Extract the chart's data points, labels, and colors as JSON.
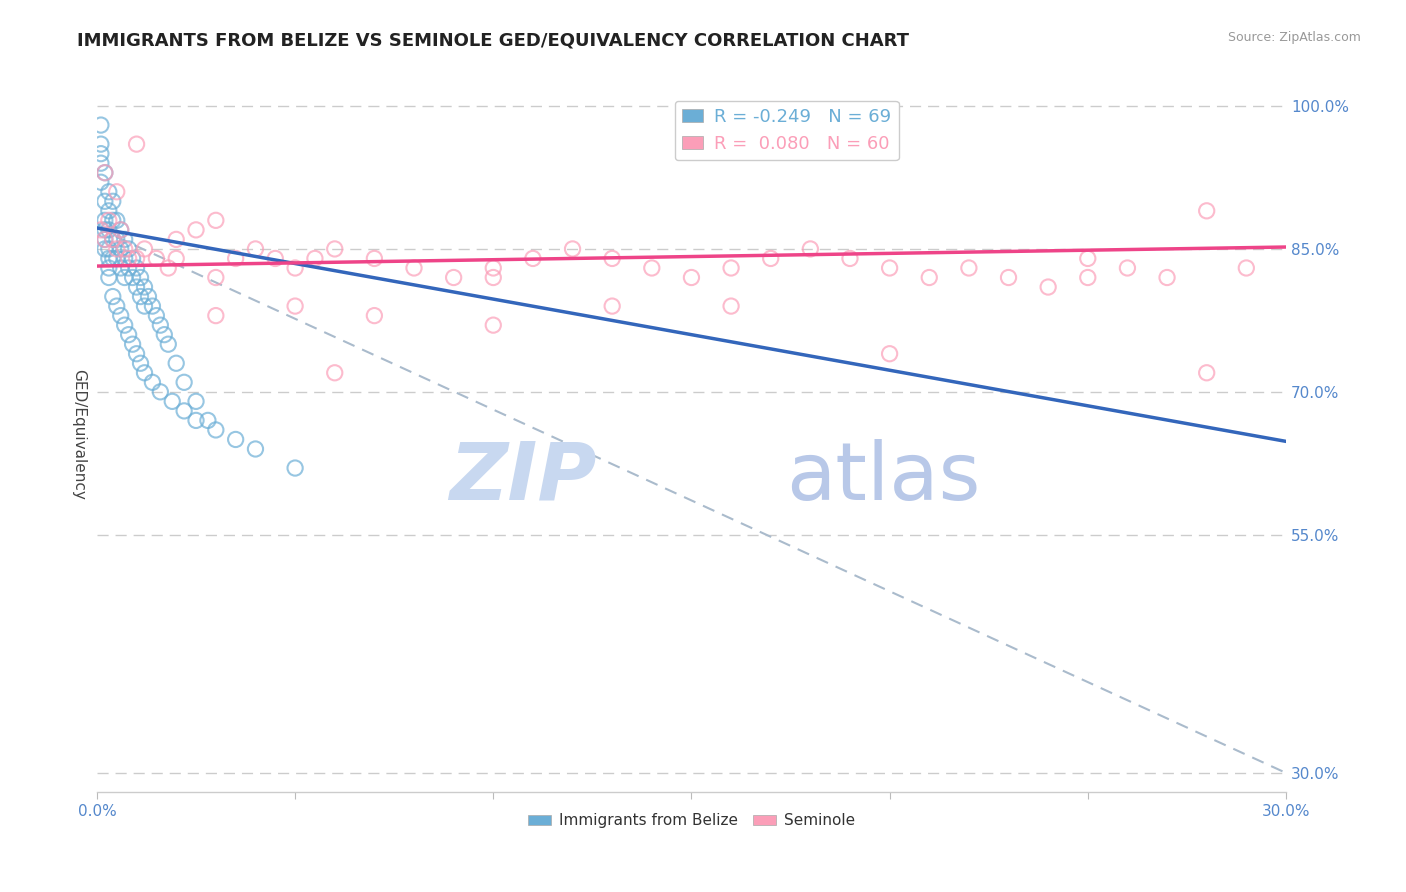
{
  "title": "IMMIGRANTS FROM BELIZE VS SEMINOLE GED/EQUIVALENCY CORRELATION CHART",
  "source": "Source: ZipAtlas.com",
  "ylabel": "GED/Equivalency",
  "xlim": [
    0.0,
    0.3
  ],
  "ylim": [
    0.28,
    1.03
  ],
  "xticks": [
    0.0,
    0.05,
    0.1,
    0.15,
    0.2,
    0.25,
    0.3
  ],
  "xticklabels": [
    "0.0%",
    "",
    "",
    "",
    "",
    "",
    "30.0%"
  ],
  "yticks": [
    0.3,
    0.55,
    0.7,
    0.85,
    1.0
  ],
  "yticklabels": [
    "30.0%",
    "55.0%",
    "70.0%",
    "85.0%",
    "100.0%"
  ],
  "legend_entries": [
    {
      "label": "R = -0.249   N = 69",
      "color": "#6baed6"
    },
    {
      "label": "R =  0.080   N = 60",
      "color": "#fb9eb8"
    }
  ],
  "blue_scatter_x": [
    0.001,
    0.001,
    0.001,
    0.002,
    0.002,
    0.002,
    0.002,
    0.003,
    0.003,
    0.003,
    0.003,
    0.003,
    0.004,
    0.004,
    0.004,
    0.004,
    0.005,
    0.005,
    0.005,
    0.006,
    0.006,
    0.006,
    0.007,
    0.007,
    0.007,
    0.008,
    0.008,
    0.009,
    0.009,
    0.01,
    0.01,
    0.011,
    0.011,
    0.012,
    0.012,
    0.013,
    0.014,
    0.015,
    0.016,
    0.017,
    0.018,
    0.02,
    0.022,
    0.025,
    0.028,
    0.001,
    0.001,
    0.002,
    0.002,
    0.003,
    0.003,
    0.004,
    0.005,
    0.006,
    0.007,
    0.008,
    0.009,
    0.01,
    0.011,
    0.012,
    0.014,
    0.016,
    0.019,
    0.022,
    0.025,
    0.03,
    0.035,
    0.04,
    0.05
  ],
  "blue_scatter_y": [
    0.98,
    0.95,
    0.92,
    0.93,
    0.9,
    0.88,
    0.86,
    0.91,
    0.89,
    0.87,
    0.85,
    0.83,
    0.9,
    0.88,
    0.86,
    0.84,
    0.88,
    0.86,
    0.84,
    0.87,
    0.85,
    0.83,
    0.86,
    0.84,
    0.82,
    0.85,
    0.83,
    0.84,
    0.82,
    0.83,
    0.81,
    0.82,
    0.8,
    0.81,
    0.79,
    0.8,
    0.79,
    0.78,
    0.77,
    0.76,
    0.75,
    0.73,
    0.71,
    0.69,
    0.67,
    0.96,
    0.94,
    0.87,
    0.85,
    0.84,
    0.82,
    0.8,
    0.79,
    0.78,
    0.77,
    0.76,
    0.75,
    0.74,
    0.73,
    0.72,
    0.71,
    0.7,
    0.69,
    0.68,
    0.67,
    0.66,
    0.65,
    0.64,
    0.62
  ],
  "pink_scatter_x": [
    0.001,
    0.002,
    0.003,
    0.004,
    0.005,
    0.006,
    0.007,
    0.008,
    0.01,
    0.012,
    0.015,
    0.018,
    0.02,
    0.025,
    0.03,
    0.035,
    0.04,
    0.045,
    0.05,
    0.055,
    0.06,
    0.07,
    0.08,
    0.09,
    0.1,
    0.11,
    0.12,
    0.13,
    0.14,
    0.15,
    0.16,
    0.17,
    0.18,
    0.19,
    0.2,
    0.21,
    0.22,
    0.23,
    0.24,
    0.25,
    0.26,
    0.27,
    0.28,
    0.29,
    0.002,
    0.005,
    0.01,
    0.02,
    0.03,
    0.05,
    0.07,
    0.1,
    0.13,
    0.16,
    0.2,
    0.25,
    0.28,
    0.03,
    0.06,
    0.1
  ],
  "pink_scatter_y": [
    0.87,
    0.86,
    0.88,
    0.86,
    0.85,
    0.87,
    0.85,
    0.84,
    0.84,
    0.85,
    0.84,
    0.83,
    0.84,
    0.87,
    0.88,
    0.84,
    0.85,
    0.84,
    0.83,
    0.84,
    0.85,
    0.84,
    0.83,
    0.82,
    0.83,
    0.84,
    0.85,
    0.84,
    0.83,
    0.82,
    0.83,
    0.84,
    0.85,
    0.84,
    0.83,
    0.82,
    0.83,
    0.82,
    0.81,
    0.84,
    0.83,
    0.82,
    0.89,
    0.83,
    0.93,
    0.91,
    0.96,
    0.86,
    0.78,
    0.79,
    0.78,
    0.77,
    0.79,
    0.79,
    0.74,
    0.82,
    0.72,
    0.82,
    0.72,
    0.82
  ],
  "blue_line_x": [
    0.0,
    0.3
  ],
  "blue_line_y": [
    0.872,
    0.648
  ],
  "pink_line_x": [
    0.0,
    0.3
  ],
  "pink_line_y": [
    0.832,
    0.852
  ],
  "dashed_line_x": [
    0.0,
    0.3
  ],
  "dashed_line_y": [
    0.872,
    0.3
  ],
  "blue_color": "#6baed6",
  "pink_color": "#fb9eb8",
  "blue_line_color": "#3366bb",
  "pink_line_color": "#ee4488",
  "dashed_line_color": "#aabbcc",
  "watermark_zip": "ZIP",
  "watermark_atlas": "atlas",
  "watermark_color": "#c8d8f0",
  "title_fontsize": 13,
  "axis_label_fontsize": 11,
  "tick_fontsize": 11,
  "background_color": "#ffffff",
  "grid_color": "#cccccc"
}
